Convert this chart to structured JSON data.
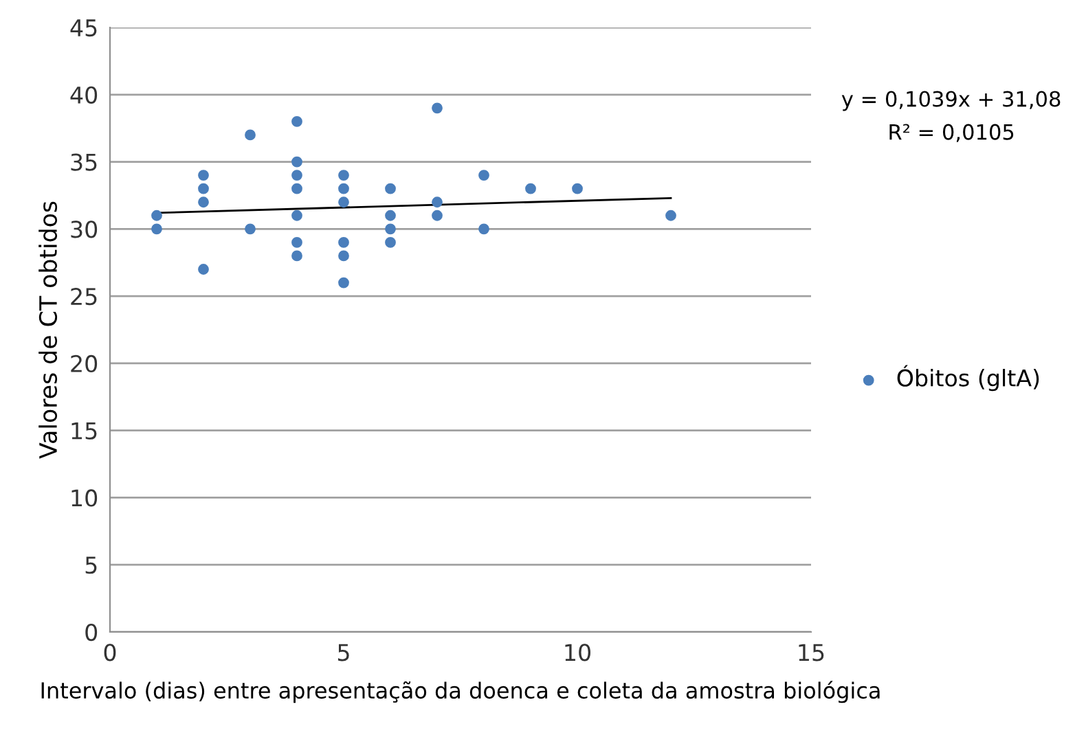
{
  "chart_data": {
    "type": "scatter",
    "xlabel": "Intervalo (dias) entre apresentação da doenca e coleta da amostra biológica",
    "ylabel": "Valores de CT obtidos",
    "series": [
      {
        "name": "Óbitos (gltA)",
        "color": "#4a7ebb",
        "x": [
          1,
          1,
          2,
          2,
          2,
          2,
          3,
          3,
          4,
          4,
          4,
          4,
          4,
          4,
          4,
          5,
          5,
          5,
          5,
          5,
          5,
          6,
          6,
          6,
          6,
          7,
          7,
          7,
          8,
          8,
          9,
          10,
          12
        ],
        "values": [
          31,
          30,
          34,
          33,
          32,
          27,
          37,
          30,
          38,
          35,
          34,
          33,
          31,
          29,
          28,
          34,
          33,
          32,
          29,
          28,
          26,
          33,
          31,
          30,
          29,
          39,
          32,
          31,
          34,
          30,
          33,
          33,
          31
        ]
      },
      {
        "type": "line",
        "marker": "none",
        "color": "#000000",
        "x": [
          1,
          12
        ],
        "values": [
          31.2,
          32.3
        ]
      }
    ],
    "annotations": [
      "y = 0,1039x + 31,08",
      "R² = 0,0105"
    ],
    "xlim": [
      0,
      15
    ],
    "xticks": [
      0,
      5,
      10,
      15
    ],
    "ylim": [
      0,
      45
    ],
    "yticks": [
      0,
      5,
      10,
      15,
      20,
      25,
      30,
      35,
      40,
      45
    ],
    "grid": "y",
    "legend": "right",
    "marker": "circle"
  }
}
